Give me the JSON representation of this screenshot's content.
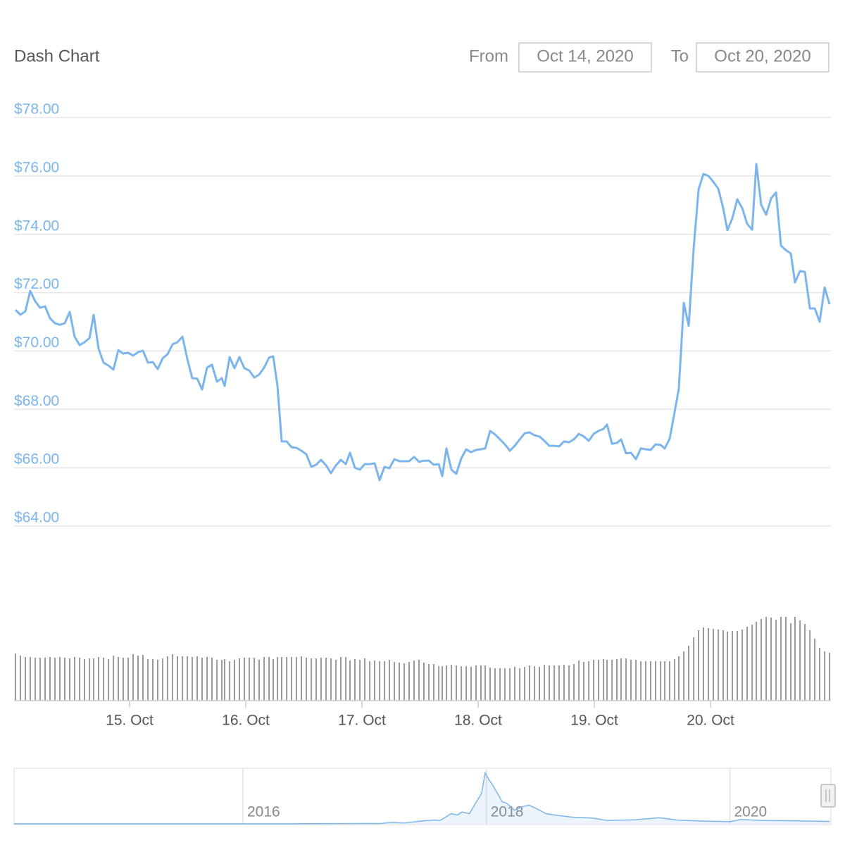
{
  "header": {
    "title": "Dash Chart",
    "from_label": "From",
    "from_value": "Oct 14, 2020",
    "to_label": "To",
    "to_value": "Oct 20, 2020"
  },
  "chart_data": {
    "type": "line",
    "color": "#7cb5ec",
    "volume_color": "#999999",
    "grid": true,
    "xlim": [
      14.006,
      21.036
    ],
    "xticks": [
      {
        "value": 15,
        "label": "15. Oct"
      },
      {
        "value": 16,
        "label": "16. Oct"
      },
      {
        "value": 17,
        "label": "17. Oct"
      },
      {
        "value": 18,
        "label": "18. Oct"
      },
      {
        "value": 19,
        "label": "19. Oct"
      },
      {
        "value": 20,
        "label": "20. Oct"
      }
    ],
    "ylim": [
      64,
      78
    ],
    "yticks": [
      {
        "value": 78,
        "label": "$78.00"
      },
      {
        "value": 76,
        "label": "$76.00"
      },
      {
        "value": 74,
        "label": "$74.00"
      },
      {
        "value": 72,
        "label": "$72.00"
      },
      {
        "value": 70,
        "label": "$70.00"
      },
      {
        "value": 68,
        "label": "$68.00"
      },
      {
        "value": 66,
        "label": "$66.00"
      },
      {
        "value": 64,
        "label": "$64.00"
      }
    ],
    "x": [
      14.018,
      14.061,
      14.103,
      14.145,
      14.188,
      14.23,
      14.273,
      14.315,
      14.358,
      14.4,
      14.442,
      14.485,
      14.527,
      14.57,
      14.612,
      14.655,
      14.691,
      14.733,
      14.776,
      14.818,
      14.861,
      14.903,
      14.945,
      14.988,
      15.03,
      15.073,
      15.115,
      15.158,
      15.2,
      15.242,
      15.285,
      15.327,
      15.37,
      15.412,
      15.455,
      15.497,
      15.539,
      15.582,
      15.624,
      15.667,
      15.709,
      15.752,
      15.794,
      15.818,
      15.861,
      15.903,
      15.945,
      15.988,
      16.03,
      16.073,
      16.115,
      16.158,
      16.2,
      16.236,
      16.273,
      16.309,
      16.352,
      16.394,
      16.436,
      16.479,
      16.521,
      16.564,
      16.606,
      16.648,
      16.691,
      16.733,
      16.776,
      16.818,
      16.861,
      16.897,
      16.939,
      16.982,
      17.024,
      17.067,
      17.109,
      17.152,
      17.194,
      17.236,
      17.279,
      17.321,
      17.364,
      17.406,
      17.448,
      17.491,
      17.533,
      17.576,
      17.618,
      17.661,
      17.691,
      17.727,
      17.77,
      17.812,
      17.855,
      17.897,
      17.939,
      17.982,
      18.024,
      18.061,
      18.103,
      18.145,
      18.188,
      18.23,
      18.273,
      18.315,
      18.358,
      18.4,
      18.442,
      18.485,
      18.527,
      18.57,
      18.612,
      18.655,
      18.697,
      18.739,
      18.782,
      18.824,
      18.867,
      18.909,
      18.952,
      18.994,
      19.036,
      19.079,
      19.109,
      19.152,
      19.194,
      19.23,
      19.273,
      19.315,
      19.358,
      19.4,
      19.442,
      19.485,
      19.527,
      19.57,
      19.606,
      19.648,
      19.691,
      19.727,
      19.77,
      19.812,
      19.855,
      19.897,
      19.939,
      19.982,
      20.024,
      20.067,
      20.109,
      20.145,
      20.188,
      20.23,
      20.273,
      20.315,
      20.358,
      20.394,
      20.436,
      20.479,
      20.521,
      20.564,
      20.606,
      20.648,
      20.691,
      20.727,
      20.77,
      20.812,
      20.855,
      20.897,
      20.939,
      20.982,
      21.024
    ],
    "values": [
      71.41,
      71.24,
      71.36,
      72.06,
      71.7,
      71.48,
      71.53,
      71.12,
      70.95,
      70.9,
      70.95,
      71.34,
      70.49,
      70.2,
      70.3,
      70.44,
      71.24,
      70.08,
      69.6,
      69.5,
      69.36,
      70.03,
      69.91,
      69.94,
      69.84,
      69.96,
      70.01,
      69.6,
      69.62,
      69.38,
      69.75,
      69.89,
      70.23,
      70.3,
      70.49,
      69.72,
      69.07,
      69.05,
      68.68,
      69.43,
      69.53,
      68.95,
      69.07,
      68.8,
      69.79,
      69.41,
      69.79,
      69.41,
      69.33,
      69.09,
      69.19,
      69.43,
      69.77,
      69.82,
      68.8,
      66.9,
      66.9,
      66.7,
      66.68,
      66.58,
      66.46,
      66.03,
      66.1,
      66.27,
      66.08,
      65.81,
      66.08,
      66.27,
      66.12,
      66.51,
      66.0,
      65.93,
      66.12,
      66.12,
      66.15,
      65.57,
      66.03,
      65.98,
      66.29,
      66.22,
      66.22,
      66.22,
      66.37,
      66.2,
      66.24,
      66.24,
      66.1,
      66.12,
      65.71,
      66.66,
      65.93,
      65.79,
      66.32,
      66.63,
      66.53,
      66.61,
      66.63,
      66.66,
      67.26,
      67.14,
      66.97,
      66.8,
      66.58,
      66.75,
      66.97,
      67.18,
      67.21,
      67.11,
      67.07,
      66.92,
      66.75,
      66.75,
      66.73,
      66.9,
      66.87,
      66.97,
      67.16,
      67.07,
      66.92,
      67.16,
      67.26,
      67.33,
      67.48,
      66.82,
      66.85,
      66.97,
      66.49,
      66.51,
      66.29,
      66.66,
      66.63,
      66.61,
      66.8,
      66.78,
      66.66,
      66.99,
      67.91,
      68.71,
      71.65,
      70.86,
      73.53,
      75.54,
      76.07,
      76.0,
      75.8,
      75.56,
      74.89,
      74.14,
      74.55,
      75.2,
      74.89,
      74.36,
      74.16,
      76.41,
      75.01,
      74.67,
      75.23,
      75.44,
      73.61,
      73.46,
      73.34,
      72.35,
      72.74,
      72.71,
      71.46,
      71.46,
      71.0,
      72.18,
      71.6
    ],
    "volume_lim": [
      0,
      130
    ],
    "volume": [
      67,
      64,
      62,
      62,
      61,
      61,
      61,
      62,
      61,
      62,
      61,
      60,
      62,
      61,
      59,
      60,
      60,
      62,
      61,
      59,
      64,
      62,
      61,
      61,
      66,
      64,
      65,
      59,
      59,
      58,
      60,
      63,
      66,
      63,
      63,
      63,
      62,
      63,
      61,
      62,
      61,
      58,
      58,
      59,
      56,
      58,
      60,
      61,
      61,
      61,
      58,
      62,
      62,
      59,
      62,
      62,
      62,
      62,
      62,
      63,
      61,
      60,
      60,
      61,
      61,
      60,
      58,
      62,
      62,
      57,
      59,
      58,
      60,
      56,
      57,
      56,
      56,
      58,
      55,
      54,
      53,
      55,
      57,
      58,
      54,
      52,
      52,
      49,
      49,
      50,
      51,
      50,
      49,
      49,
      48,
      50,
      50,
      50,
      47,
      46,
      46,
      46,
      46,
      48,
      46,
      48,
      50,
      49,
      48,
      51,
      50,
      50,
      50,
      51,
      50,
      52,
      57,
      55,
      56,
      58,
      58,
      59,
      58,
      58,
      59,
      60,
      60,
      58,
      58,
      56,
      56,
      56,
      56,
      56,
      56,
      56,
      59,
      63,
      70,
      78,
      90,
      100,
      104,
      103,
      102,
      101,
      100,
      98,
      99,
      99,
      101,
      105,
      108,
      112,
      116,
      119,
      118,
      115,
      119,
      119,
      110,
      119,
      114,
      109,
      100,
      88,
      75,
      70,
      68
    ],
    "navigator": {
      "xlim": [
        2014.12,
        2020.83
      ],
      "ylim": [
        0,
        1550
      ],
      "xticks": [
        2016,
        2018,
        2020
      ],
      "x": [
        2014.12,
        2015.16,
        2016.32,
        2016.72,
        2017.13,
        2017.22,
        2017.33,
        2017.48,
        2017.57,
        2017.62,
        2017.71,
        2017.76,
        2017.8,
        2017.86,
        2017.91,
        2017.96,
        2017.99,
        2018.02,
        2018.05,
        2018.09,
        2018.13,
        2018.17,
        2018.23,
        2018.29,
        2018.35,
        2018.41,
        2018.49,
        2018.58,
        2018.7,
        2018.87,
        2018.99,
        2019.22,
        2019.42,
        2019.57,
        2019.8,
        2020,
        2020.09,
        2020.26,
        2020.49,
        2020.67,
        2020.82
      ],
      "values": [
        3,
        3,
        3,
        8,
        10,
        40,
        25,
        90,
        110,
        100,
        300,
        260,
        350,
        300,
        600,
        900,
        1500,
        1300,
        1150,
        900,
        650,
        600,
        400,
        500,
        550,
        450,
        300,
        250,
        200,
        170,
        100,
        120,
        180,
        110,
        80,
        65,
        130,
        100,
        90,
        80,
        72
      ]
    }
  }
}
